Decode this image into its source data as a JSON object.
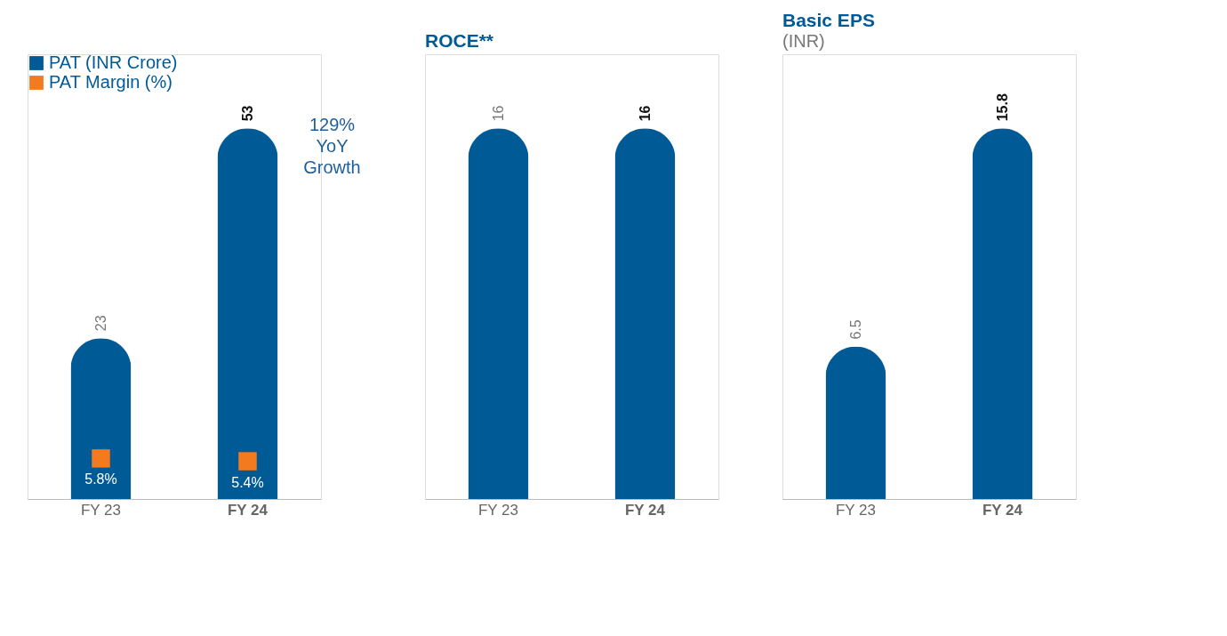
{
  "chart_data": [
    {
      "type": "bar",
      "categories": [
        "FY 23",
        "FY 24"
      ],
      "legend": "top left",
      "marker": "square",
      "series": [
        {
          "name": "PAT (INR Crore)",
          "color": "#005a96",
          "values": [
            23,
            53
          ],
          "value_labels": [
            "23",
            "53"
          ]
        },
        {
          "name": "PAT Margin (%)",
          "type": "scatter",
          "color": "#f47a20",
          "x": [
            "FY 23",
            "FY 24"
          ],
          "values": [
            5.8,
            5.4
          ],
          "value_labels": [
            "5.8%",
            "5.4%"
          ]
        }
      ],
      "annotations": [
        "129% YoY Growth"
      ]
    },
    {
      "type": "bar",
      "title": "ROCE**",
      "categories": [
        "FY 23",
        "FY 24"
      ],
      "data_labels": true,
      "series": [
        {
          "color": "#005a96",
          "values": [
            16,
            16
          ]
        }
      ]
    },
    {
      "type": "bar",
      "title": "Basic EPS",
      "subtitle": "(INR)",
      "categories": [
        "FY 23",
        "FY 24"
      ],
      "data_labels": true,
      "series": [
        {
          "color": "#005a96",
          "values": [
            6.5,
            15.8
          ]
        }
      ]
    }
  ]
}
